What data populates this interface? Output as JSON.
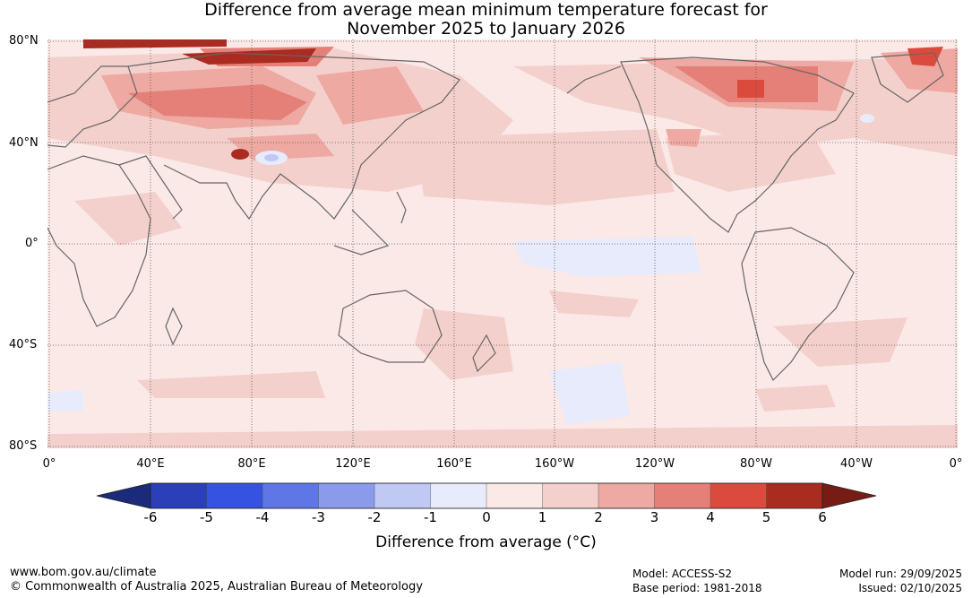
{
  "title": {
    "line1": "Difference from average mean minimum temperature forecast for",
    "line2": "November 2025 to January 2026"
  },
  "lat_labels": [
    "80°N",
    "40°N",
    "0°",
    "40°S",
    "80°S"
  ],
  "lon_labels": [
    "0°",
    "40°E",
    "80°E",
    "120°E",
    "160°E",
    "160°W",
    "120°W",
    "80°W",
    "40°W",
    "0°"
  ],
  "legend": {
    "ticks": [
      "-6",
      "-5",
      "-4",
      "-3",
      "-2",
      "-1",
      "0",
      "1",
      "2",
      "3",
      "4",
      "5",
      "6"
    ],
    "colors": [
      "#1b2a7a",
      "#2a3fb8",
      "#3553e0",
      "#5f76e6",
      "#8a9bec",
      "#c0c8f4",
      "#e8ebfb",
      "#fbe9e7",
      "#f4d0cc",
      "#eda9a2",
      "#e58078",
      "#db4b3d",
      "#aa2b20",
      "#761c14"
    ],
    "label": "Difference from average (°C)"
  },
  "footer": {
    "url": "www.bom.gov.au/climate",
    "copyright": "© Commonwealth of Australia 2025, Australian Bureau of Meteorology",
    "model": "Model: ACCESS-S2",
    "base_period": "Base period: 1981-2018",
    "model_run": "Model run: 29/09/2025",
    "issued": "Issued: 02/10/2025"
  }
}
